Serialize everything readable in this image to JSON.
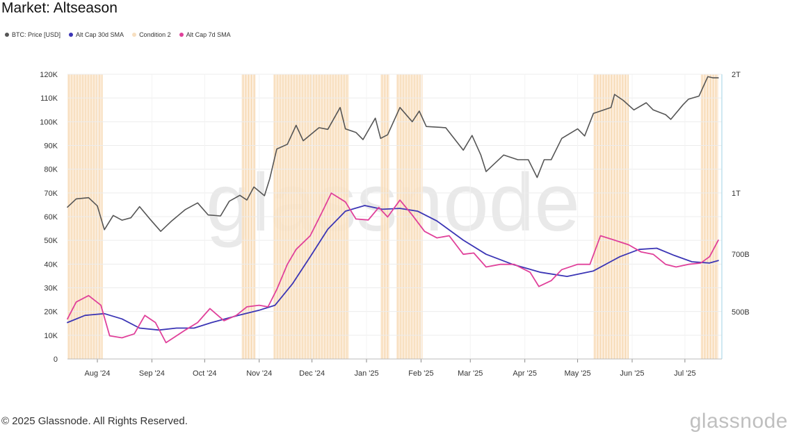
{
  "title": "Market: Altseason",
  "legend": [
    {
      "label": "BTC: Price [USD]",
      "color": "#555555"
    },
    {
      "label": "Alt Cap 30d SMA",
      "color": "#3b35b5"
    },
    {
      "label": "Condition 2",
      "color": "#f7dfc0"
    },
    {
      "label": "Alt Cap 7d SMA",
      "color": "#e0409a"
    }
  ],
  "watermark": "glassnode",
  "footer": "© 2025 Glassnode. All Rights Reserved.",
  "brand": "glassnode",
  "chart_data": {
    "type": "line",
    "title": "Market: Altseason",
    "x_range": [
      "2024-07-15",
      "2025-07-22"
    ],
    "x_ticks": [
      "Aug '24",
      "Sep '24",
      "Oct '24",
      "Nov '24",
      "Dec '24",
      "Jan '25",
      "Feb '25",
      "Mar '25",
      "Apr '25",
      "May '25",
      "Jun '25",
      "Jul '25"
    ],
    "y_left": {
      "ticks": [
        "0",
        "10K",
        "20K",
        "30K",
        "40K",
        "50K",
        "60K",
        "70K",
        "80K",
        "90K",
        "100K",
        "110K",
        "120K"
      ],
      "range": [
        0,
        120000
      ]
    },
    "y_right": {
      "scale": "log",
      "ticks": [
        "500B",
        "700B",
        "1T",
        "2T"
      ],
      "tick_values": [
        500,
        700,
        1000,
        2000
      ],
      "range": [
        380,
        2000
      ]
    },
    "grid": true,
    "series": [
      {
        "name": "BTC: Price [USD]",
        "axis": "left",
        "color": "#555555",
        "points": [
          [
            "2024-07-15",
            64000
          ],
          [
            "2024-07-20",
            67500
          ],
          [
            "2024-07-27",
            68000
          ],
          [
            "2024-08-01",
            64500
          ],
          [
            "2024-08-05",
            54500
          ],
          [
            "2024-08-10",
            60500
          ],
          [
            "2024-08-15",
            58500
          ],
          [
            "2024-08-20",
            59500
          ],
          [
            "2024-08-25",
            64200
          ],
          [
            "2024-08-31",
            58900
          ],
          [
            "2024-09-06",
            53800
          ],
          [
            "2024-09-12",
            58000
          ],
          [
            "2024-09-20",
            63000
          ],
          [
            "2024-09-27",
            65800
          ],
          [
            "2024-10-03",
            60700
          ],
          [
            "2024-10-10",
            60300
          ],
          [
            "2024-10-15",
            66500
          ],
          [
            "2024-10-21",
            69000
          ],
          [
            "2024-10-25",
            67000
          ],
          [
            "2024-10-29",
            72500
          ],
          [
            "2024-11-04",
            68800
          ],
          [
            "2024-11-07",
            76000
          ],
          [
            "2024-11-11",
            88500
          ],
          [
            "2024-11-17",
            90500
          ],
          [
            "2024-11-22",
            98500
          ],
          [
            "2024-11-26",
            92000
          ],
          [
            "2024-12-05",
            97500
          ],
          [
            "2024-12-10",
            96800
          ],
          [
            "2024-12-17",
            106000
          ],
          [
            "2024-12-20",
            97000
          ],
          [
            "2024-12-26",
            95500
          ],
          [
            "2024-12-30",
            92500
          ],
          [
            "2025-01-06",
            101500
          ],
          [
            "2025-01-09",
            93000
          ],
          [
            "2025-01-13",
            94500
          ],
          [
            "2025-01-20",
            106000
          ],
          [
            "2025-01-27",
            100000
          ],
          [
            "2025-01-31",
            104500
          ],
          [
            "2025-02-04",
            98000
          ],
          [
            "2025-02-15",
            97500
          ],
          [
            "2025-02-25",
            88000
          ],
          [
            "2025-03-02",
            94200
          ],
          [
            "2025-03-07",
            86000
          ],
          [
            "2025-03-10",
            79000
          ],
          [
            "2025-03-20",
            86000
          ],
          [
            "2025-03-28",
            84000
          ],
          [
            "2025-04-03",
            84000
          ],
          [
            "2025-04-08",
            76500
          ],
          [
            "2025-04-12",
            84000
          ],
          [
            "2025-04-16",
            84000
          ],
          [
            "2025-04-22",
            93000
          ],
          [
            "2025-05-01",
            97000
          ],
          [
            "2025-05-05",
            94000
          ],
          [
            "2025-05-10",
            103500
          ],
          [
            "2025-05-20",
            106000
          ],
          [
            "2025-05-22",
            111500
          ],
          [
            "2025-05-27",
            109000
          ],
          [
            "2025-06-02",
            105000
          ],
          [
            "2025-06-09",
            108000
          ],
          [
            "2025-06-13",
            105000
          ],
          [
            "2025-06-20",
            103000
          ],
          [
            "2025-06-23",
            101000
          ],
          [
            "2025-06-30",
            107200
          ],
          [
            "2025-07-03",
            109500
          ],
          [
            "2025-07-09",
            110800
          ],
          [
            "2025-07-14",
            119000
          ],
          [
            "2025-07-17",
            118500
          ],
          [
            "2025-07-20",
            118500
          ]
        ]
      },
      {
        "name": "Alt Cap 30d SMA",
        "axis": "right",
        "color": "#3b35b5",
        "points": [
          [
            "2024-07-15",
            470
          ],
          [
            "2024-07-25",
            490
          ],
          [
            "2024-08-05",
            495
          ],
          [
            "2024-08-15",
            480
          ],
          [
            "2024-08-25",
            455
          ],
          [
            "2024-09-05",
            450
          ],
          [
            "2024-09-15",
            455
          ],
          [
            "2024-09-25",
            455
          ],
          [
            "2024-10-05",
            470
          ],
          [
            "2024-10-20",
            490
          ],
          [
            "2024-11-01",
            505
          ],
          [
            "2024-11-10",
            520
          ],
          [
            "2024-11-20",
            590
          ],
          [
            "2024-11-30",
            690
          ],
          [
            "2024-12-10",
            810
          ],
          [
            "2024-12-20",
            900
          ],
          [
            "2024-12-31",
            930
          ],
          [
            "2025-01-10",
            910
          ],
          [
            "2025-01-20",
            915
          ],
          [
            "2025-01-30",
            900
          ],
          [
            "2025-02-10",
            850
          ],
          [
            "2025-02-25",
            760
          ],
          [
            "2025-03-10",
            700
          ],
          [
            "2025-03-25",
            660
          ],
          [
            "2025-04-10",
            630
          ],
          [
            "2025-04-25",
            615
          ],
          [
            "2025-05-10",
            635
          ],
          [
            "2025-05-25",
            690
          ],
          [
            "2025-06-05",
            720
          ],
          [
            "2025-06-15",
            725
          ],
          [
            "2025-06-25",
            695
          ],
          [
            "2025-07-05",
            670
          ],
          [
            "2025-07-15",
            665
          ],
          [
            "2025-07-20",
            675
          ]
        ]
      },
      {
        "name": "Alt Cap 7d SMA",
        "axis": "right",
        "color": "#e0409a",
        "points": [
          [
            "2024-07-15",
            480
          ],
          [
            "2024-07-20",
            530
          ],
          [
            "2024-07-27",
            550
          ],
          [
            "2024-08-03",
            520
          ],
          [
            "2024-08-08",
            435
          ],
          [
            "2024-08-15",
            430
          ],
          [
            "2024-08-22",
            440
          ],
          [
            "2024-08-28",
            490
          ],
          [
            "2024-09-03",
            470
          ],
          [
            "2024-09-09",
            418
          ],
          [
            "2024-09-15",
            435
          ],
          [
            "2024-09-20",
            450
          ],
          [
            "2024-09-27",
            470
          ],
          [
            "2024-10-04",
            510
          ],
          [
            "2024-10-12",
            475
          ],
          [
            "2024-10-19",
            490
          ],
          [
            "2024-10-25",
            515
          ],
          [
            "2024-11-01",
            520
          ],
          [
            "2024-11-06",
            515
          ],
          [
            "2024-11-11",
            570
          ],
          [
            "2024-11-17",
            660
          ],
          [
            "2024-11-22",
            720
          ],
          [
            "2024-11-30",
            780
          ],
          [
            "2024-12-07",
            900
          ],
          [
            "2024-12-12",
            1000
          ],
          [
            "2024-12-20",
            950
          ],
          [
            "2024-12-26",
            860
          ],
          [
            "2025-01-02",
            855
          ],
          [
            "2025-01-08",
            920
          ],
          [
            "2025-01-13",
            870
          ],
          [
            "2025-01-20",
            960
          ],
          [
            "2025-01-27",
            880
          ],
          [
            "2025-02-03",
            800
          ],
          [
            "2025-02-10",
            770
          ],
          [
            "2025-02-17",
            780
          ],
          [
            "2025-02-25",
            700
          ],
          [
            "2025-03-03",
            705
          ],
          [
            "2025-03-10",
            650
          ],
          [
            "2025-03-18",
            660
          ],
          [
            "2025-03-26",
            660
          ],
          [
            "2025-04-04",
            630
          ],
          [
            "2025-04-09",
            580
          ],
          [
            "2025-04-16",
            600
          ],
          [
            "2025-04-22",
            640
          ],
          [
            "2025-05-01",
            660
          ],
          [
            "2025-05-08",
            660
          ],
          [
            "2025-05-14",
            780
          ],
          [
            "2025-05-22",
            760
          ],
          [
            "2025-05-30",
            740
          ],
          [
            "2025-06-06",
            710
          ],
          [
            "2025-06-13",
            700
          ],
          [
            "2025-06-20",
            660
          ],
          [
            "2025-06-26",
            650
          ],
          [
            "2025-07-03",
            660
          ],
          [
            "2025-07-10",
            665
          ],
          [
            "2025-07-15",
            690
          ],
          [
            "2025-07-20",
            760
          ]
        ]
      }
    ],
    "condition_2_periods": [
      [
        "2024-07-15",
        "2024-08-04"
      ],
      [
        "2024-10-22",
        "2024-10-30"
      ],
      [
        "2024-11-09",
        "2024-12-22"
      ],
      [
        "2025-01-09",
        "2025-01-14"
      ],
      [
        "2025-01-18",
        "2025-02-02"
      ],
      [
        "2025-05-10",
        "2025-05-30"
      ],
      [
        "2025-07-10",
        "2025-07-20"
      ]
    ]
  }
}
